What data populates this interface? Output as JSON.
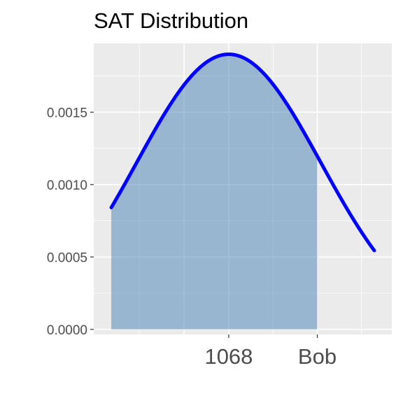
{
  "chart_data": {
    "type": "area",
    "title": "SAT Distribution",
    "xlabel": "",
    "ylabel": "",
    "distribution": {
      "mean": 1068,
      "sd": 210
    },
    "x_range": [
      800,
      1400
    ],
    "xlim": [
      760,
      1440
    ],
    "ylim": [
      -3.5e-05,
      0.001975
    ],
    "shade_to": 1270,
    "y_ticks": [
      {
        "value": 0.0,
        "label": "0.0000"
      },
      {
        "value": 0.0005,
        "label": "0.0005"
      },
      {
        "value": 0.001,
        "label": "0.0010"
      },
      {
        "value": 0.0015,
        "label": "0.0015"
      }
    ],
    "x_ticks": [
      {
        "value": 1068,
        "label": "1068"
      },
      {
        "value": 1270,
        "label": "Bob"
      }
    ],
    "grid_major_x": [
      966,
      1068,
      1270
    ],
    "grid_minor_x": [
      864,
      1169,
      1371
    ],
    "grid": true,
    "colors": {
      "panel": "#ebebeb",
      "grid": "#ffffff",
      "curve": "#0000ff",
      "fill": "#4682b4",
      "fill_opacity": 0.5
    }
  }
}
